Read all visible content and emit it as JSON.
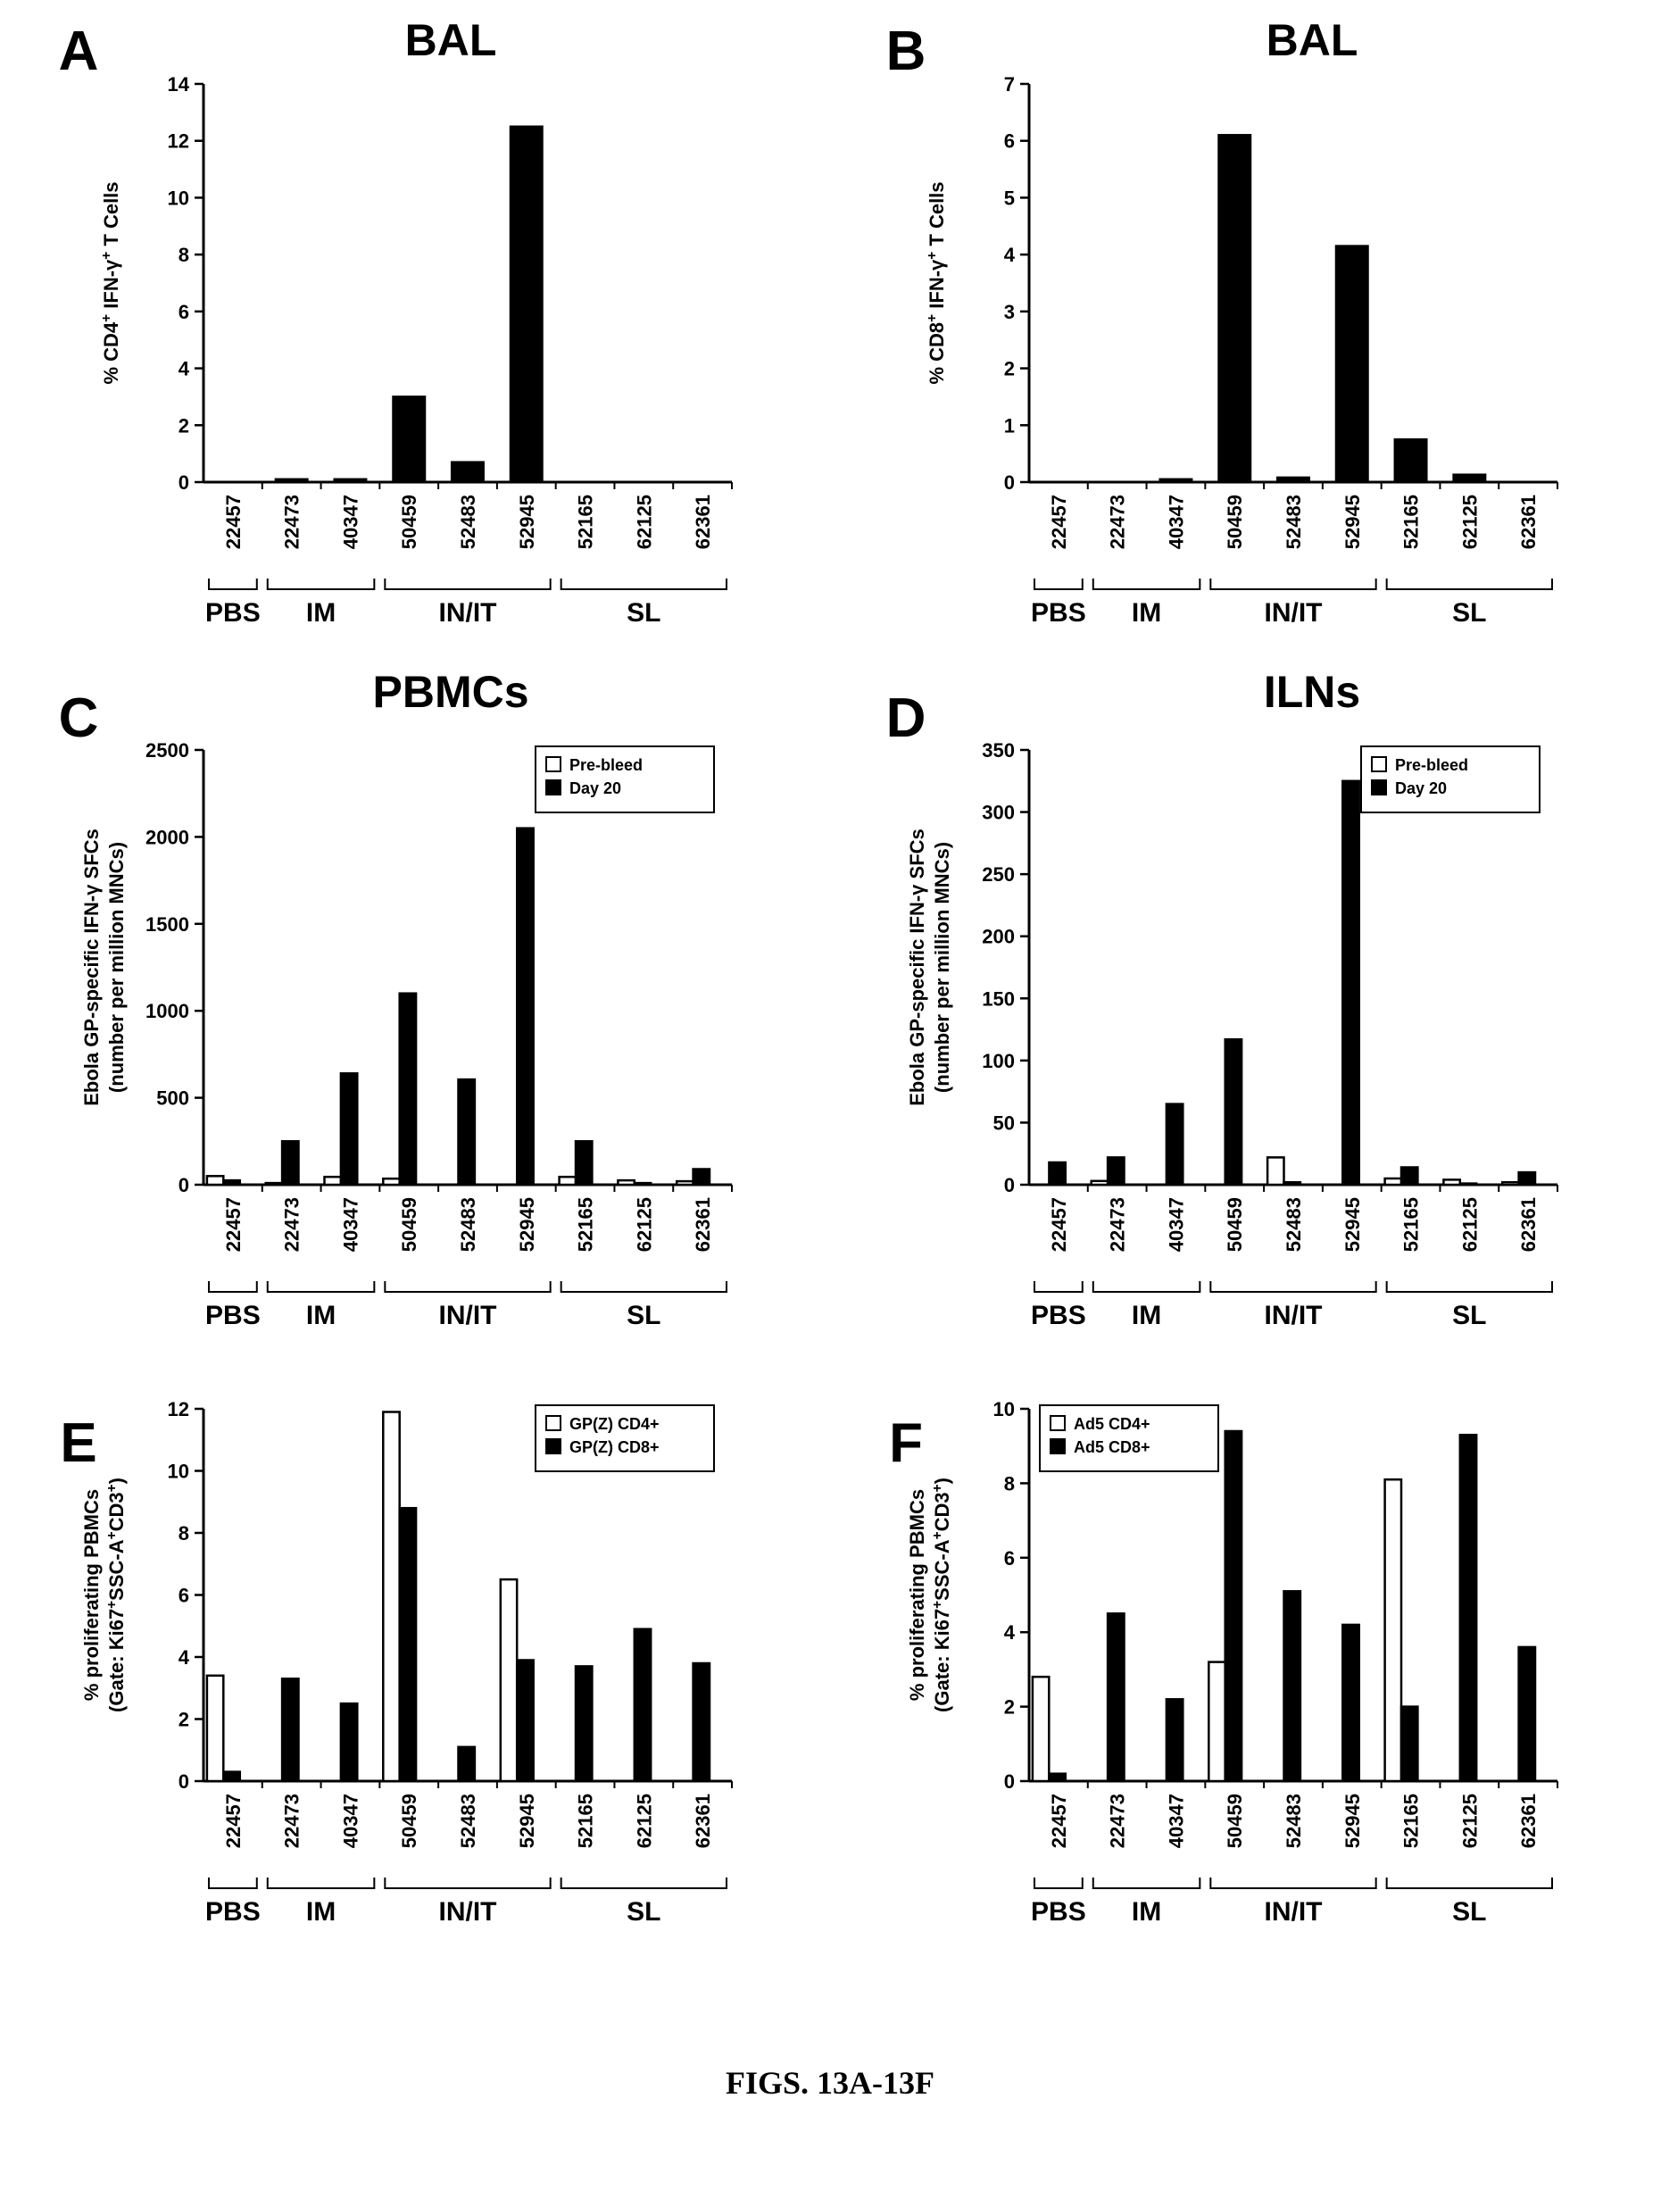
{
  "figure_caption": "FIGS. 13A-13F",
  "chart_data": [
    {
      "type": "bar",
      "panel": "A",
      "title": "BAL",
      "ylabel": "% CD4⁺ IFN-γ⁺ T Cells",
      "ylim": [
        0,
        14
      ],
      "yticks": [
        0,
        2,
        4,
        6,
        8,
        10,
        12,
        14
      ],
      "categories": [
        "22457",
        "22473",
        "40347",
        "50459",
        "52483",
        "52945",
        "52165",
        "62125",
        "62361"
      ],
      "groups": [
        {
          "label": "PBS",
          "start": 0,
          "end": 0
        },
        {
          "label": "IM",
          "start": 1,
          "end": 2
        },
        {
          "label": "IN/IT",
          "start": 3,
          "end": 5
        },
        {
          "label": "SL",
          "start": 6,
          "end": 8
        }
      ],
      "series": [
        {
          "values": [
            0,
            0.1,
            0.1,
            3.0,
            0.7,
            12.5,
            0,
            0,
            0
          ],
          "color": "#000000"
        }
      ],
      "legend": null
    },
    {
      "type": "bar",
      "panel": "B",
      "title": "BAL",
      "ylabel": "% CD8⁺ IFN-γ⁺ T Cells",
      "ylim": [
        0,
        7
      ],
      "yticks": [
        0,
        1,
        2,
        3,
        4,
        5,
        6,
        7
      ],
      "categories": [
        "22457",
        "22473",
        "40347",
        "50459",
        "52483",
        "52945",
        "52165",
        "62125",
        "62361"
      ],
      "groups": [
        {
          "label": "PBS",
          "start": 0,
          "end": 0
        },
        {
          "label": "IM",
          "start": 1,
          "end": 2
        },
        {
          "label": "IN/IT",
          "start": 3,
          "end": 5
        },
        {
          "label": "SL",
          "start": 6,
          "end": 8
        }
      ],
      "series": [
        {
          "values": [
            0,
            0,
            0.05,
            6.1,
            0.08,
            4.15,
            0.75,
            0.13,
            0
          ],
          "color": "#000000"
        }
      ],
      "legend": null
    },
    {
      "type": "bar",
      "panel": "C",
      "title": "PBMCs",
      "ylabel": "Ebola GP-specific IFN-γ SFCs",
      "ylabel2": "(number per million MNCs)",
      "ylim": [
        0,
        2500
      ],
      "yticks": [
        0,
        500,
        1000,
        1500,
        2000,
        2500
      ],
      "categories": [
        "22457",
        "22473",
        "40347",
        "50459",
        "52483",
        "52945",
        "52165",
        "62125",
        "62361"
      ],
      "groups": [
        {
          "label": "PBS",
          "start": 0,
          "end": 0
        },
        {
          "label": "IM",
          "start": 1,
          "end": 2
        },
        {
          "label": "IN/IT",
          "start": 3,
          "end": 5
        },
        {
          "label": "SL",
          "start": 6,
          "end": 8
        }
      ],
      "series": [
        {
          "name": "Pre-bleed",
          "values": [
            50,
            10,
            45,
            35,
            0,
            0,
            45,
            25,
            20
          ],
          "color": "#ffffff"
        },
        {
          "name": "Day 20",
          "values": [
            25,
            250,
            640,
            1100,
            605,
            2050,
            250,
            10,
            90
          ],
          "color": "#000000"
        }
      ],
      "legend": "top-right"
    },
    {
      "type": "bar",
      "panel": "D",
      "title": "ILNs",
      "ylabel": "Ebola GP-specific IFN-γ SFCs",
      "ylabel2": "(number per million MNCs)",
      "ylim": [
        0,
        350
      ],
      "yticks": [
        0,
        50,
        100,
        150,
        200,
        250,
        300,
        350
      ],
      "categories": [
        "22457",
        "22473",
        "40347",
        "50459",
        "52483",
        "52945",
        "52165",
        "62125",
        "62361"
      ],
      "groups": [
        {
          "label": "PBS",
          "start": 0,
          "end": 0
        },
        {
          "label": "IM",
          "start": 1,
          "end": 2
        },
        {
          "label": "IN/IT",
          "start": 3,
          "end": 5
        },
        {
          "label": "SL",
          "start": 6,
          "end": 8
        }
      ],
      "series": [
        {
          "name": "Pre-bleed",
          "values": [
            0,
            3,
            0,
            0,
            22,
            0,
            5,
            4,
            2
          ],
          "color": "#ffffff"
        },
        {
          "name": "Day 20",
          "values": [
            18,
            22,
            65,
            117,
            2,
            325,
            14,
            1,
            10
          ],
          "color": "#000000"
        }
      ],
      "legend": "top-right"
    },
    {
      "type": "bar",
      "panel": "E",
      "title": "",
      "ylabel": "% proliferating PBMCs",
      "ylabel2": "(Gate: Ki67⁺SSC-A⁺CD3⁺)",
      "ylim": [
        0,
        12
      ],
      "yticks": [
        0,
        2,
        4,
        6,
        8,
        10,
        12
      ],
      "categories": [
        "22457",
        "22473",
        "40347",
        "50459",
        "52483",
        "52945",
        "52165",
        "62125",
        "62361"
      ],
      "groups": [
        {
          "label": "PBS",
          "start": 0,
          "end": 0
        },
        {
          "label": "IM",
          "start": 1,
          "end": 2
        },
        {
          "label": "IN/IT",
          "start": 3,
          "end": 5
        },
        {
          "label": "SL",
          "start": 6,
          "end": 8
        }
      ],
      "series": [
        {
          "name": "GP(Z) CD4+",
          "values": [
            3.4,
            0,
            0,
            11.9,
            0,
            6.5,
            0,
            0,
            0
          ],
          "color": "#ffffff"
        },
        {
          "name": "GP(Z) CD8+",
          "values": [
            0.3,
            3.3,
            2.5,
            8.8,
            1.1,
            3.9,
            3.7,
            4.9,
            3.8
          ],
          "color": "#000000"
        }
      ],
      "legend": "top-right"
    },
    {
      "type": "bar",
      "panel": "F",
      "title": "",
      "ylabel": "% proliferating PBMCs",
      "ylabel2": "(Gate: Ki67⁺SSC-A⁺CD3⁺)",
      "ylim": [
        0,
        10
      ],
      "yticks": [
        0,
        2,
        4,
        6,
        8,
        10
      ],
      "categories": [
        "22457",
        "22473",
        "40347",
        "50459",
        "52483",
        "52945",
        "52165",
        "62125",
        "62361"
      ],
      "groups": [
        {
          "label": "PBS",
          "start": 0,
          "end": 0
        },
        {
          "label": "IM",
          "start": 1,
          "end": 2
        },
        {
          "label": "IN/IT",
          "start": 3,
          "end": 5
        },
        {
          "label": "SL",
          "start": 6,
          "end": 8
        }
      ],
      "series": [
        {
          "name": "Ad5 CD4+",
          "values": [
            2.8,
            0,
            0,
            3.2,
            0,
            0,
            8.1,
            0,
            0
          ],
          "color": "#ffffff"
        },
        {
          "name": "Ad5 CD8+",
          "values": [
            0.2,
            4.5,
            2.2,
            9.4,
            5.1,
            4.2,
            2.0,
            9.3,
            3.6
          ],
          "color": "#000000"
        }
      ],
      "legend": "top-left"
    }
  ]
}
